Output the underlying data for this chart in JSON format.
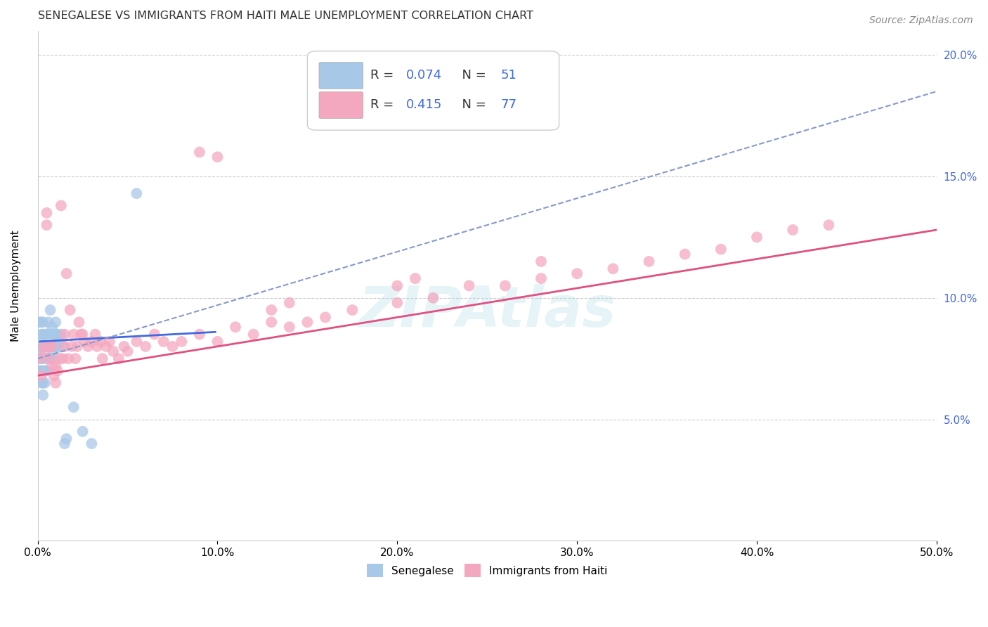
{
  "title": "SENEGALESE VS IMMIGRANTS FROM HAITI MALE UNEMPLOYMENT CORRELATION CHART",
  "source": "Source: ZipAtlas.com",
  "ylabel": "Male Unemployment",
  "xlim": [
    0.0,
    0.5
  ],
  "ylim": [
    0.0,
    0.21
  ],
  "yticks": [
    0.05,
    0.1,
    0.15,
    0.2
  ],
  "ytick_labels": [
    "5.0%",
    "10.0%",
    "15.0%",
    "20.0%"
  ],
  "xticks": [
    0.0,
    0.1,
    0.2,
    0.3,
    0.4,
    0.5
  ],
  "xtick_labels": [
    "0.0%",
    "10.0%",
    "20.0%",
    "30.0%",
    "40.0%",
    "50.0%"
  ],
  "senegalese_color": "#a8c8e8",
  "haiti_color": "#f4a8c0",
  "senegalese_R": 0.074,
  "senegalese_N": 51,
  "haiti_R": 0.415,
  "haiti_N": 77,
  "legend_label_1": "Senegalese",
  "legend_label_2": "Immigrants from Haiti",
  "trend_line_senegalese_color": "#4169e1",
  "trend_line_haiti_color": "#e05080",
  "trend_line_dashed_color": "#8899cc",
  "background_color": "#ffffff",
  "grid_color": "#cccccc",
  "watermark_text": "ZIPAtlas",
  "senegalese_x": [
    0.001,
    0.001,
    0.001,
    0.001,
    0.002,
    0.002,
    0.002,
    0.002,
    0.002,
    0.002,
    0.003,
    0.003,
    0.003,
    0.003,
    0.003,
    0.003,
    0.003,
    0.004,
    0.004,
    0.004,
    0.004,
    0.005,
    0.005,
    0.005,
    0.005,
    0.006,
    0.006,
    0.006,
    0.007,
    0.007,
    0.007,
    0.007,
    0.008,
    0.008,
    0.008,
    0.009,
    0.009,
    0.01,
    0.01,
    0.01,
    0.011,
    0.011,
    0.012,
    0.013,
    0.014,
    0.015,
    0.016,
    0.02,
    0.025,
    0.03,
    0.055
  ],
  "senegalese_y": [
    0.07,
    0.078,
    0.082,
    0.09,
    0.065,
    0.07,
    0.075,
    0.08,
    0.085,
    0.09,
    0.06,
    0.065,
    0.07,
    0.075,
    0.08,
    0.085,
    0.09,
    0.065,
    0.07,
    0.08,
    0.085,
    0.07,
    0.075,
    0.08,
    0.085,
    0.075,
    0.08,
    0.09,
    0.075,
    0.08,
    0.085,
    0.095,
    0.075,
    0.08,
    0.088,
    0.078,
    0.085,
    0.08,
    0.085,
    0.09,
    0.08,
    0.085,
    0.082,
    0.085,
    0.08,
    0.04,
    0.042,
    0.055,
    0.045,
    0.04,
    0.143
  ],
  "haiti_x": [
    0.001,
    0.002,
    0.003,
    0.004,
    0.005,
    0.005,
    0.006,
    0.007,
    0.008,
    0.008,
    0.009,
    0.01,
    0.01,
    0.011,
    0.012,
    0.013,
    0.014,
    0.015,
    0.015,
    0.016,
    0.017,
    0.018,
    0.019,
    0.02,
    0.021,
    0.022,
    0.023,
    0.024,
    0.025,
    0.026,
    0.028,
    0.03,
    0.032,
    0.033,
    0.035,
    0.036,
    0.038,
    0.04,
    0.042,
    0.045,
    0.048,
    0.05,
    0.055,
    0.06,
    0.065,
    0.07,
    0.075,
    0.08,
    0.09,
    0.1,
    0.11,
    0.12,
    0.13,
    0.14,
    0.15,
    0.16,
    0.175,
    0.2,
    0.22,
    0.24,
    0.26,
    0.28,
    0.3,
    0.32,
    0.34,
    0.36,
    0.38,
    0.4,
    0.42,
    0.44,
    0.13,
    0.14,
    0.2,
    0.21,
    0.28,
    0.09,
    0.1
  ],
  "haiti_y": [
    0.075,
    0.068,
    0.08,
    0.078,
    0.13,
    0.135,
    0.075,
    0.08,
    0.072,
    0.08,
    0.068,
    0.065,
    0.072,
    0.07,
    0.075,
    0.138,
    0.075,
    0.08,
    0.085,
    0.11,
    0.075,
    0.095,
    0.08,
    0.085,
    0.075,
    0.08,
    0.09,
    0.085,
    0.085,
    0.082,
    0.08,
    0.082,
    0.085,
    0.08,
    0.082,
    0.075,
    0.08,
    0.082,
    0.078,
    0.075,
    0.08,
    0.078,
    0.082,
    0.08,
    0.085,
    0.082,
    0.08,
    0.082,
    0.085,
    0.082,
    0.088,
    0.085,
    0.09,
    0.088,
    0.09,
    0.092,
    0.095,
    0.098,
    0.1,
    0.105,
    0.105,
    0.108,
    0.11,
    0.112,
    0.115,
    0.118,
    0.12,
    0.125,
    0.128,
    0.13,
    0.095,
    0.098,
    0.105,
    0.108,
    0.115,
    0.16,
    0.158
  ],
  "sen_trend_x0": 0.0,
  "sen_trend_y0": 0.082,
  "sen_trend_x1": 0.1,
  "sen_trend_y1": 0.086,
  "hai_trend_x0": 0.0,
  "hai_trend_y0": 0.068,
  "hai_trend_x1": 0.5,
  "hai_trend_y1": 0.128,
  "dash_trend_x0": 0.0,
  "dash_trend_y0": 0.075,
  "dash_trend_x1": 0.5,
  "dash_trend_y1": 0.185
}
